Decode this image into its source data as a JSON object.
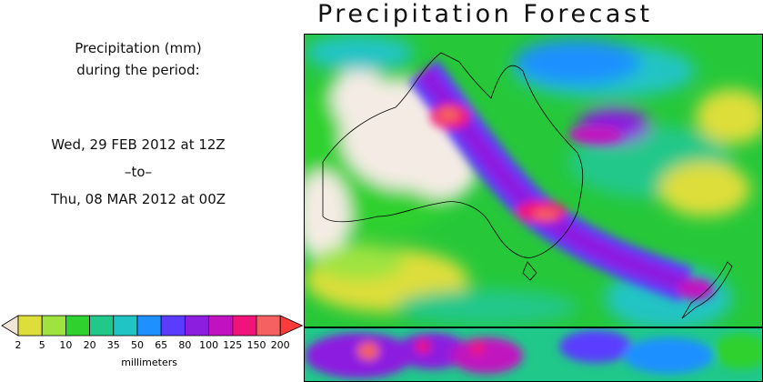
{
  "title": "Precipitation Forecast",
  "description": {
    "line1": "Precipitation (mm)",
    "line2": "during the period:",
    "start": "Wed, 29 FEB 2012 at 12Z",
    "separator": "–to–",
    "end": "Thu, 08 MAR 2012 at 00Z"
  },
  "legend": {
    "unit": "millimeters",
    "labels": [
      "2",
      "5",
      "10",
      "20",
      "35",
      "50",
      "65",
      "80",
      "100",
      "125",
      "150",
      "200"
    ],
    "colors": [
      "#f2e6d8",
      "#dede3a",
      "#9ee33f",
      "#2ed12e",
      "#20c88a",
      "#20c4c4",
      "#1e90ff",
      "#5a3cff",
      "#8c1ee0",
      "#c012c0",
      "#f0147a",
      "#f56060",
      "#ff3a3a"
    ]
  }
}
